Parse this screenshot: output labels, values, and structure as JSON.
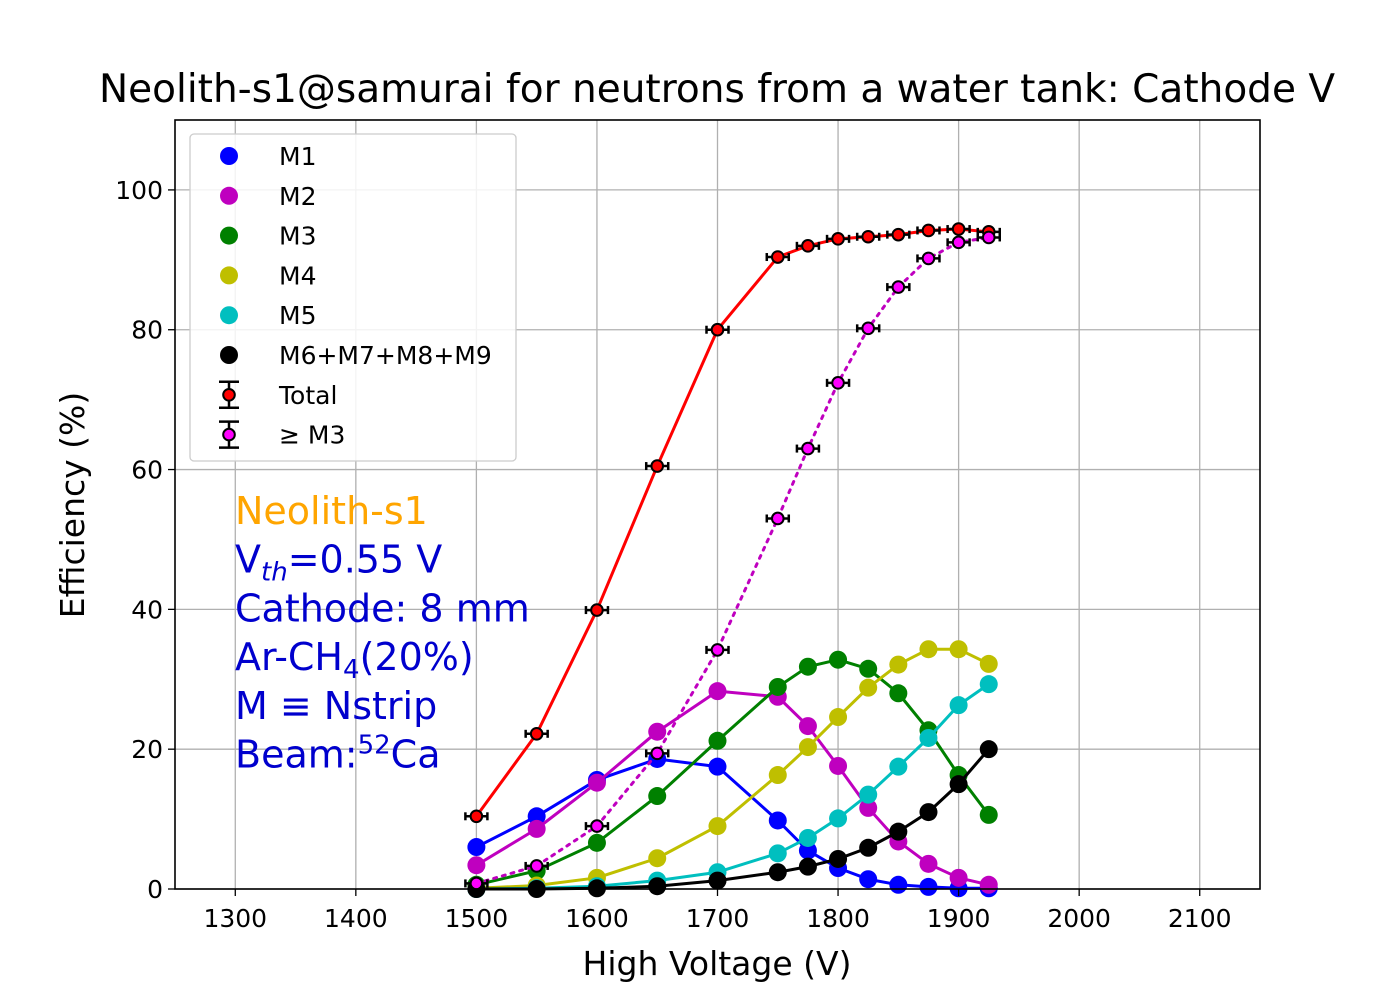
{
  "chart_data": {
    "type": "line",
    "title": "Neolith-s1@samurai for neutrons from a water tank: Cathode V",
    "xlabel": "High Voltage (V)",
    "ylabel": "Efficiency (%)",
    "xlim": [
      1250,
      2150
    ],
    "ylim": [
      0,
      110
    ],
    "xticks": [
      "1300",
      "1400",
      "1500",
      "1600",
      "1700",
      "1800",
      "1900",
      "2000",
      "2100"
    ],
    "yticks": [
      "0",
      "20",
      "40",
      "60",
      "80",
      "100"
    ],
    "grid": true,
    "legend_position": "upper-left",
    "x": [
      1500,
      1550,
      1600,
      1650,
      1700,
      1750,
      1775,
      1800,
      1825,
      1850,
      1875,
      1900,
      1925
    ],
    "series": [
      {
        "name": "M1",
        "color": "#0000ff",
        "style": "solid",
        "marker": "dot",
        "values": [
          6.0,
          10.4,
          15.6,
          18.6,
          17.5,
          9.8,
          5.5,
          3.0,
          1.4,
          0.6,
          0.3,
          0.1,
          0.1
        ]
      },
      {
        "name": "M2",
        "color": "#bf00bf",
        "style": "solid",
        "marker": "dot",
        "values": [
          3.4,
          8.6,
          15.2,
          22.5,
          28.3,
          27.5,
          23.3,
          17.6,
          11.6,
          6.8,
          3.6,
          1.6,
          0.6
        ]
      },
      {
        "name": "M3",
        "color": "#008000",
        "style": "solid",
        "marker": "dot",
        "values": [
          0.6,
          2.6,
          6.6,
          13.3,
          21.2,
          28.9,
          31.8,
          32.8,
          31.5,
          28.0,
          22.7,
          16.3,
          10.6
        ]
      },
      {
        "name": "M4",
        "color": "#bfbf00",
        "style": "solid",
        "marker": "dot",
        "values": [
          0.1,
          0.5,
          1.6,
          4.4,
          9.0,
          16.3,
          20.3,
          24.6,
          28.8,
          32.1,
          34.3,
          34.3,
          32.2
        ]
      },
      {
        "name": "M5",
        "color": "#00bfbf",
        "style": "solid",
        "marker": "dot",
        "values": [
          0.0,
          0.1,
          0.4,
          1.2,
          2.4,
          5.1,
          7.3,
          10.1,
          13.5,
          17.5,
          21.6,
          26.3,
          29.3
        ]
      },
      {
        "name": "M6+M7+M8+M9",
        "color": "#000000",
        "style": "solid",
        "marker": "dot",
        "values": [
          0.0,
          0.0,
          0.1,
          0.4,
          1.2,
          2.4,
          3.2,
          4.3,
          5.9,
          8.2,
          11.0,
          15.0,
          20.0
        ]
      },
      {
        "name": "Total",
        "color": "#ff0000",
        "style": "solid",
        "marker": "errorbar",
        "values": [
          10.4,
          22.2,
          39.9,
          60.5,
          80.0,
          90.4,
          92.0,
          93.0,
          93.3,
          93.6,
          94.2,
          94.4,
          94.0
        ]
      },
      {
        "name": " ≥ M3",
        "color": "#ff00ff",
        "line_color": "#bf00bf",
        "style": "dotted",
        "marker": "errorbar",
        "values": [
          0.8,
          3.3,
          9.0,
          19.4,
          34.2,
          53.0,
          63.0,
          72.4,
          80.2,
          86.1,
          90.2,
          92.5,
          93.2
        ]
      }
    ],
    "annotations": [
      {
        "text": "Neolith-s1",
        "color": "#ffa500"
      },
      {
        "text": "V",
        "sub": "th",
        "suffix": "=0.55 V",
        "color": "#0000cd"
      },
      {
        "text": "Cathode: 8 mm",
        "color": "#0000cd"
      },
      {
        "text": "Ar-CH",
        "sub": "4",
        "suffix": "(20%)",
        "color": "#0000cd"
      },
      {
        "text": "M ≡ Nstrip",
        "color": "#0000cd"
      },
      {
        "text": "Beam:",
        "sup": "52",
        "suffix": "Ca",
        "color": "#0000cd"
      }
    ]
  }
}
